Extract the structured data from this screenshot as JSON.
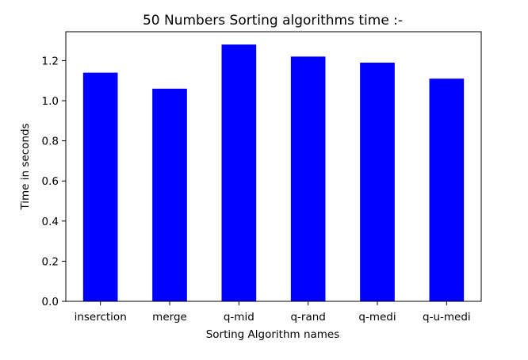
{
  "chart_data": {
    "type": "bar",
    "title": "50 Numbers Sorting algorithms time :-",
    "xlabel": "Sorting Algorithm names",
    "ylabel": "Time in seconds",
    "categories": [
      "inserction",
      "merge",
      "q-mid",
      "q-rand",
      "q-medi",
      "q-u-medi"
    ],
    "values": [
      1.14,
      1.06,
      1.28,
      1.22,
      1.19,
      1.11
    ],
    "ylim": [
      0,
      1.344
    ],
    "yticks": [
      0.0,
      0.2,
      0.4,
      0.6,
      0.8,
      1.0,
      1.2
    ],
    "ytick_labels": [
      "0.0",
      "0.2",
      "0.4",
      "0.6",
      "0.8",
      "1.0",
      "1.2"
    ],
    "bar_color": "#0000ff",
    "grid": false,
    "legend": "none"
  }
}
